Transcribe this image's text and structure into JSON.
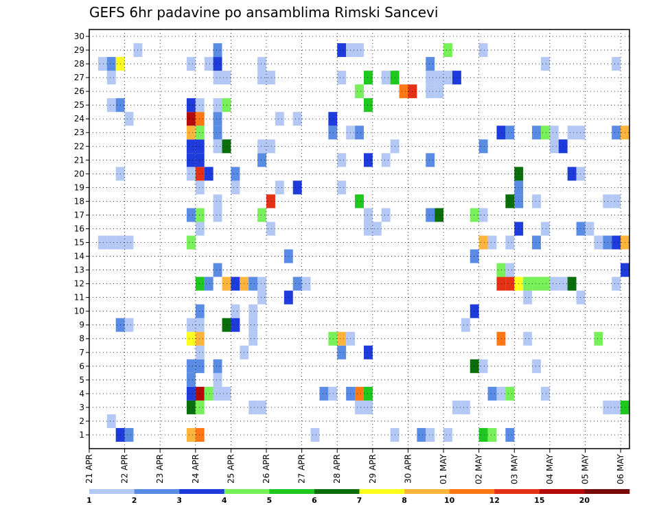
{
  "chart_data": {
    "type": "heatmap",
    "title": "GEFS 6hr padavine po ansamblima Rimski Sancevi",
    "x_tick_labels": [
      "21 APR",
      "22 APR",
      "23 APR",
      "24 APR",
      "25 APR",
      "26 APR",
      "27 APR",
      "28 APR",
      "29 APR",
      "30 APR",
      "01 MAY",
      "02 MAY",
      "03 MAY",
      "04 MAY",
      "05 MAY",
      "06 MAY"
    ],
    "y_tick_labels": [
      "1",
      "2",
      "3",
      "4",
      "5",
      "6",
      "7",
      "8",
      "9",
      "10",
      "11",
      "12",
      "13",
      "14",
      "15",
      "16",
      "17",
      "18",
      "19",
      "20",
      "21",
      "22",
      "23",
      "24",
      "25",
      "26",
      "27",
      "28",
      "29",
      "30"
    ],
    "steps_per_day": 4,
    "n_steps": 61,
    "n_members": 30,
    "grid": true,
    "legend_position": "bottom",
    "colorbar": {
      "levels": [
        "1",
        "2",
        "3",
        "4",
        "5",
        "6",
        "7",
        "8",
        "10",
        "12",
        "15",
        "20"
      ],
      "colors": [
        "#b4c8f5",
        "#5a8ce6",
        "#1e3cdc",
        "#78f05a",
        "#1ec81e",
        "#0a6e0a",
        "#ffff1e",
        "#ffb43c",
        "#ff7814",
        "#e63214",
        "#b40a0a",
        "#780a0a"
      ]
    },
    "cells": [
      [
        3,
        1,
        2
      ],
      [
        4,
        1,
        1
      ],
      [
        11,
        1,
        7
      ],
      [
        12,
        1,
        8
      ],
      [
        25,
        1,
        0
      ],
      [
        34,
        1,
        0
      ],
      [
        37,
        1,
        1
      ],
      [
        38,
        1,
        0
      ],
      [
        40,
        1,
        0
      ],
      [
        44,
        1,
        4
      ],
      [
        45,
        1,
        3
      ],
      [
        47,
        1,
        1
      ],
      [
        2,
        2,
        0
      ],
      [
        11,
        3,
        5
      ],
      [
        12,
        3,
        3
      ],
      [
        18,
        3,
        0
      ],
      [
        19,
        3,
        0
      ],
      [
        30,
        3,
        0
      ],
      [
        31,
        3,
        0
      ],
      [
        41,
        3,
        0
      ],
      [
        42,
        3,
        0
      ],
      [
        58,
        3,
        0
      ],
      [
        59,
        3,
        0
      ],
      [
        60,
        3,
        4
      ],
      [
        11,
        4,
        2
      ],
      [
        12,
        4,
        10
      ],
      [
        13,
        4,
        3
      ],
      [
        14,
        4,
        0
      ],
      [
        15,
        4,
        0
      ],
      [
        26,
        4,
        1
      ],
      [
        27,
        4,
        0
      ],
      [
        29,
        4,
        1
      ],
      [
        30,
        4,
        8
      ],
      [
        31,
        4,
        4
      ],
      [
        45,
        4,
        1
      ],
      [
        46,
        4,
        0
      ],
      [
        47,
        4,
        3
      ],
      [
        51,
        4,
        0
      ],
      [
        11,
        5,
        1
      ],
      [
        14,
        5,
        0
      ],
      [
        11,
        6,
        1
      ],
      [
        12,
        6,
        1
      ],
      [
        14,
        6,
        1
      ],
      [
        43,
        6,
        5
      ],
      [
        44,
        6,
        0
      ],
      [
        50,
        6,
        0
      ],
      [
        12,
        7,
        0
      ],
      [
        17,
        7,
        0
      ],
      [
        28,
        7,
        1
      ],
      [
        31,
        7,
        2
      ],
      [
        11,
        8,
        6
      ],
      [
        12,
        8,
        7
      ],
      [
        18,
        8,
        0
      ],
      [
        27,
        8,
        3
      ],
      [
        28,
        8,
        7
      ],
      [
        29,
        8,
        0
      ],
      [
        46,
        8,
        8
      ],
      [
        49,
        8,
        0
      ],
      [
        57,
        8,
        3
      ],
      [
        3,
        9,
        1
      ],
      [
        4,
        9,
        0
      ],
      [
        11,
        9,
        0
      ],
      [
        12,
        9,
        0
      ],
      [
        15,
        9,
        5
      ],
      [
        16,
        9,
        2
      ],
      [
        18,
        9,
        0
      ],
      [
        42,
        9,
        0
      ],
      [
        12,
        10,
        1
      ],
      [
        16,
        10,
        0
      ],
      [
        18,
        10,
        0
      ],
      [
        43,
        10,
        2
      ],
      [
        19,
        11,
        0
      ],
      [
        22,
        11,
        2
      ],
      [
        49,
        11,
        0
      ],
      [
        55,
        11,
        0
      ],
      [
        12,
        12,
        4
      ],
      [
        13,
        12,
        1
      ],
      [
        15,
        12,
        7
      ],
      [
        16,
        12,
        2
      ],
      [
        17,
        12,
        7
      ],
      [
        18,
        12,
        1
      ],
      [
        19,
        12,
        0
      ],
      [
        23,
        12,
        1
      ],
      [
        24,
        12,
        0
      ],
      [
        46,
        12,
        9
      ],
      [
        47,
        12,
        9
      ],
      [
        48,
        12,
        6
      ],
      [
        49,
        12,
        3
      ],
      [
        50,
        12,
        3
      ],
      [
        51,
        12,
        3
      ],
      [
        52,
        12,
        0
      ],
      [
        53,
        12,
        0
      ],
      [
        54,
        12,
        5
      ],
      [
        59,
        12,
        0
      ],
      [
        14,
        13,
        1
      ],
      [
        46,
        13,
        3
      ],
      [
        47,
        13,
        0
      ],
      [
        60,
        13,
        2
      ],
      [
        22,
        14,
        1
      ],
      [
        43,
        14,
        1
      ],
      [
        1,
        15,
        0
      ],
      [
        2,
        15,
        0
      ],
      [
        3,
        15,
        0
      ],
      [
        4,
        15,
        0
      ],
      [
        11,
        15,
        3
      ],
      [
        44,
        15,
        7
      ],
      [
        45,
        15,
        0
      ],
      [
        47,
        15,
        0
      ],
      [
        50,
        15,
        1
      ],
      [
        57,
        15,
        0
      ],
      [
        58,
        15,
        1
      ],
      [
        59,
        15,
        2
      ],
      [
        60,
        15,
        7
      ],
      [
        12,
        16,
        0
      ],
      [
        20,
        16,
        0
      ],
      [
        31,
        16,
        0
      ],
      [
        32,
        16,
        0
      ],
      [
        48,
        16,
        2
      ],
      [
        51,
        16,
        0
      ],
      [
        55,
        16,
        1
      ],
      [
        56,
        16,
        0
      ],
      [
        11,
        17,
        1
      ],
      [
        12,
        17,
        3
      ],
      [
        14,
        17,
        0
      ],
      [
        19,
        17,
        3
      ],
      [
        31,
        17,
        0
      ],
      [
        33,
        17,
        0
      ],
      [
        38,
        17,
        1
      ],
      [
        39,
        17,
        5
      ],
      [
        43,
        17,
        3
      ],
      [
        44,
        17,
        0
      ],
      [
        14,
        18,
        0
      ],
      [
        20,
        18,
        9
      ],
      [
        30,
        18,
        4
      ],
      [
        47,
        18,
        5
      ],
      [
        48,
        18,
        1
      ],
      [
        50,
        18,
        0
      ],
      [
        58,
        18,
        0
      ],
      [
        59,
        18,
        0
      ],
      [
        12,
        19,
        0
      ],
      [
        16,
        19,
        0
      ],
      [
        21,
        19,
        0
      ],
      [
        23,
        19,
        2
      ],
      [
        28,
        19,
        0
      ],
      [
        48,
        19,
        1
      ],
      [
        3,
        20,
        0
      ],
      [
        11,
        20,
        0
      ],
      [
        12,
        20,
        9
      ],
      [
        13,
        20,
        2
      ],
      [
        16,
        20,
        1
      ],
      [
        48,
        20,
        5
      ],
      [
        54,
        20,
        2
      ],
      [
        55,
        20,
        0
      ],
      [
        11,
        21,
        2
      ],
      [
        12,
        21,
        2
      ],
      [
        19,
        21,
        1
      ],
      [
        28,
        21,
        0
      ],
      [
        31,
        21,
        2
      ],
      [
        33,
        21,
        0
      ],
      [
        38,
        21,
        1
      ],
      [
        11,
        22,
        2
      ],
      [
        12,
        22,
        2
      ],
      [
        14,
        22,
        0
      ],
      [
        15,
        22,
        5
      ],
      [
        19,
        22,
        0
      ],
      [
        20,
        22,
        0
      ],
      [
        34,
        22,
        0
      ],
      [
        44,
        22,
        1
      ],
      [
        52,
        22,
        0
      ],
      [
        53,
        22,
        2
      ],
      [
        11,
        23,
        7
      ],
      [
        12,
        23,
        3
      ],
      [
        14,
        23,
        1
      ],
      [
        27,
        23,
        1
      ],
      [
        29,
        23,
        0
      ],
      [
        30,
        23,
        1
      ],
      [
        46,
        23,
        2
      ],
      [
        47,
        23,
        1
      ],
      [
        50,
        23,
        1
      ],
      [
        51,
        23,
        3
      ],
      [
        52,
        23,
        0
      ],
      [
        54,
        23,
        0
      ],
      [
        55,
        23,
        0
      ],
      [
        59,
        23,
        1
      ],
      [
        60,
        23,
        7
      ],
      [
        4,
        24,
        0
      ],
      [
        11,
        24,
        10
      ],
      [
        12,
        24,
        8
      ],
      [
        14,
        24,
        1
      ],
      [
        21,
        24,
        0
      ],
      [
        23,
        24,
        0
      ],
      [
        27,
        24,
        2
      ],
      [
        2,
        25,
        0
      ],
      [
        3,
        25,
        1
      ],
      [
        11,
        25,
        2
      ],
      [
        12,
        25,
        0
      ],
      [
        14,
        25,
        0
      ],
      [
        15,
        25,
        3
      ],
      [
        31,
        25,
        4
      ],
      [
        35,
        26,
        8
      ],
      [
        36,
        26,
        9
      ],
      [
        38,
        26,
        0
      ],
      [
        39,
        26,
        0
      ],
      [
        30,
        26,
        3
      ],
      [
        2,
        27,
        0
      ],
      [
        14,
        27,
        0
      ],
      [
        15,
        27,
        0
      ],
      [
        19,
        27,
        0
      ],
      [
        20,
        27,
        0
      ],
      [
        28,
        27,
        0
      ],
      [
        31,
        27,
        4
      ],
      [
        33,
        27,
        0
      ],
      [
        34,
        27,
        4
      ],
      [
        38,
        27,
        0
      ],
      [
        39,
        27,
        0
      ],
      [
        40,
        27,
        0
      ],
      [
        41,
        27,
        2
      ],
      [
        1,
        28,
        0
      ],
      [
        2,
        28,
        1
      ],
      [
        3,
        28,
        6
      ],
      [
        11,
        28,
        0
      ],
      [
        13,
        28,
        0
      ],
      [
        14,
        28,
        2
      ],
      [
        19,
        28,
        0
      ],
      [
        38,
        28,
        1
      ],
      [
        51,
        28,
        0
      ],
      [
        59,
        28,
        0
      ],
      [
        5,
        29,
        0
      ],
      [
        14,
        29,
        1
      ],
      [
        28,
        29,
        2
      ],
      [
        29,
        29,
        0
      ],
      [
        30,
        29,
        0
      ],
      [
        40,
        29,
        3
      ],
      [
        44,
        29,
        0
      ]
    ]
  }
}
